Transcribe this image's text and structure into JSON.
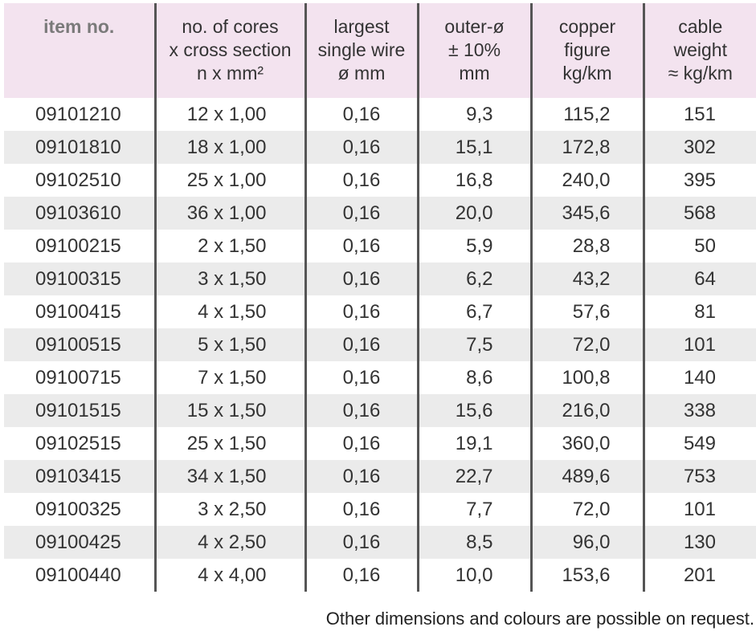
{
  "table": {
    "headers": [
      [
        "item no."
      ],
      [
        "no. of cores",
        "x cross section",
        "n x mm²"
      ],
      [
        "largest",
        "single wire",
        "ø mm"
      ],
      [
        "outer-ø",
        "± 10%",
        "mm"
      ],
      [
        "copper",
        "figure",
        "kg/km"
      ],
      [
        "cable",
        "weight",
        "≈ kg/km"
      ]
    ],
    "rows": [
      [
        "09101210",
        "12 x 1,00",
        "0,16",
        "9,3",
        "115,2",
        "151"
      ],
      [
        "09101810",
        "18 x 1,00",
        "0,16",
        "15,1",
        "172,8",
        "302"
      ],
      [
        "09102510",
        "25 x 1,00",
        "0,16",
        "16,8",
        "240,0",
        "395"
      ],
      [
        "09103610",
        "36 x 1,00",
        "0,16",
        "20,0",
        "345,6",
        "568"
      ],
      [
        "09100215",
        "2 x 1,50",
        "0,16",
        "5,9",
        "28,8",
        "50"
      ],
      [
        "09100315",
        "3 x 1,50",
        "0,16",
        "6,2",
        "43,2",
        "64"
      ],
      [
        "09100415",
        "4 x 1,50",
        "0,16",
        "6,7",
        "57,6",
        "81"
      ],
      [
        "09100515",
        "5 x 1,50",
        "0,16",
        "7,5",
        "72,0",
        "101"
      ],
      [
        "09100715",
        "7 x 1,50",
        "0,16",
        "8,6",
        "100,8",
        "140"
      ],
      [
        "09101515",
        "15 x 1,50",
        "0,16",
        "15,6",
        "216,0",
        "338"
      ],
      [
        "09102515",
        "25 x 1,50",
        "0,16",
        "19,1",
        "360,0",
        "549"
      ],
      [
        "09103415",
        "34 x 1,50",
        "0,16",
        "22,7",
        "489,6",
        "753"
      ],
      [
        "09100325",
        "3 x 2,50",
        "0,16",
        "7,7",
        "72,0",
        "101"
      ],
      [
        "09100425",
        "4 x 2,50",
        "0,16",
        "8,5",
        "96,0",
        "130"
      ],
      [
        "09100440",
        "4 x 4,00",
        "0,16",
        "10,0",
        "153,6",
        "201"
      ]
    ]
  },
  "footnote": "Other dimensions and colours are possible on request.",
  "colors": {
    "header_bg": "#f3e3ef",
    "stripe_bg": "#ebebeb",
    "divider": "#555555",
    "item_header_text": "#7a7a7a"
  }
}
